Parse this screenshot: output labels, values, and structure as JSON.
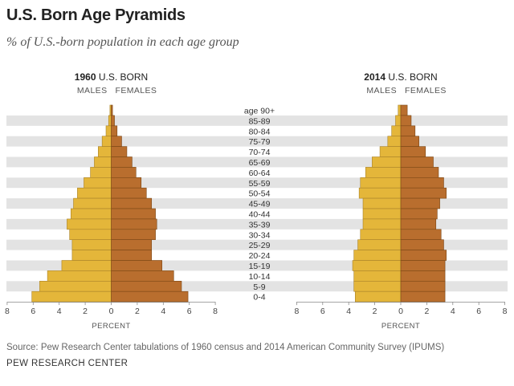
{
  "title": "U.S. Born Age Pyramids",
  "subtitle": "% of U.S.-born population in each age group",
  "source": "Source: Pew Research Center tabulations of 1960 census and 2014 American Community Survey (IPUMS)",
  "credit": "PEW RESEARCH CENTER",
  "colors": {
    "male": "#e4b63a",
    "male_edge": "#a9822a",
    "female": "#b96e2e",
    "female_edge": "#7a4615",
    "band": "#e3e3e3"
  },
  "chart_data": {
    "type": "population-pyramid",
    "age_groups": [
      "age 90+",
      "85-89",
      "80-84",
      "75-79",
      "70-74",
      "65-69",
      "60-64",
      "55-59",
      "50-54",
      "45-49",
      "40-44",
      "35-39",
      "30-34",
      "25-29",
      "20-24",
      "15-19",
      "10-14",
      "5-9",
      "0-4"
    ],
    "panels": [
      {
        "year_label": "1960",
        "title_rest": " U.S. BORN",
        "males_label": "MALES",
        "females_label": "FEMALES",
        "axis_label": "PERCENT",
        "ticks": [
          8,
          6,
          4,
          2,
          0,
          2,
          4,
          6,
          8
        ],
        "males": [
          0.1,
          0.2,
          0.4,
          0.7,
          1.0,
          1.3,
          1.6,
          2.1,
          2.6,
          2.9,
          3.1,
          3.4,
          3.2,
          3.0,
          3.0,
          3.8,
          4.9,
          5.5,
          6.1
        ],
        "females": [
          0.1,
          0.25,
          0.45,
          0.8,
          1.2,
          1.6,
          1.9,
          2.3,
          2.7,
          3.1,
          3.4,
          3.5,
          3.4,
          3.1,
          3.1,
          3.9,
          4.8,
          5.4,
          5.9
        ]
      },
      {
        "year_label": "2014",
        "title_rest": " U.S. BORN",
        "males_label": "MALES",
        "females_label": "FEMALES",
        "axis_label": "PERCENT",
        "ticks": [
          8,
          6,
          4,
          2,
          0,
          2,
          4,
          6,
          8
        ],
        "males": [
          0.2,
          0.4,
          0.7,
          1.0,
          1.6,
          2.2,
          2.7,
          3.1,
          3.2,
          2.9,
          2.9,
          2.9,
          3.1,
          3.3,
          3.6,
          3.7,
          3.6,
          3.6,
          3.5
        ],
        "females": [
          0.5,
          0.8,
          1.1,
          1.4,
          1.9,
          2.5,
          2.9,
          3.3,
          3.5,
          3.0,
          2.8,
          2.7,
          3.1,
          3.3,
          3.5,
          3.4,
          3.4,
          3.4,
          3.4
        ]
      }
    ],
    "xlim": [
      0,
      8
    ]
  }
}
